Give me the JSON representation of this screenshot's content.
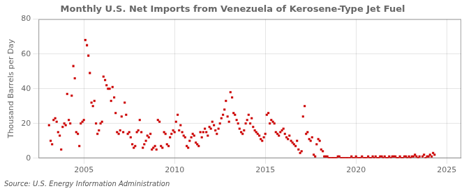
{
  "chart_data": {
    "type": "scatter",
    "title": "Monthly U.S. Net Imports from Venezuela of Kerosene-Type Jet Fuel",
    "ylabel": "Thousand Barrels per Day",
    "annotation": "Source: U.S. Energy Information Administration",
    "color": "#cc0000",
    "marker": "square",
    "grid": true,
    "xlim": [
      2002.5,
      2025.8
    ],
    "xticks": [
      2005,
      2010,
      2015,
      2020,
      2025
    ],
    "ylim": [
      0,
      80
    ],
    "yticks": [
      0,
      20,
      40,
      60,
      80
    ],
    "x": [
      2003.08,
      2003.17,
      2003.25,
      2003.33,
      2003.42,
      2003.5,
      2003.58,
      2003.67,
      2003.75,
      2003.83,
      2003.92,
      2004.0,
      2004.08,
      2004.17,
      2004.25,
      2004.33,
      2004.42,
      2004.5,
      2004.58,
      2004.67,
      2004.75,
      2004.83,
      2004.92,
      2005.0,
      2005.08,
      2005.17,
      2005.25,
      2005.33,
      2005.42,
      2005.5,
      2005.58,
      2005.67,
      2005.75,
      2005.83,
      2005.92,
      2006.0,
      2006.08,
      2006.17,
      2006.25,
      2006.33,
      2006.42,
      2006.5,
      2006.58,
      2006.67,
      2006.75,
      2006.83,
      2006.92,
      2007.0,
      2007.08,
      2007.17,
      2007.25,
      2007.33,
      2007.42,
      2007.5,
      2007.58,
      2007.67,
      2007.75,
      2007.83,
      2007.92,
      2008.0,
      2008.08,
      2008.17,
      2008.25,
      2008.33,
      2008.42,
      2008.5,
      2008.58,
      2008.67,
      2008.75,
      2008.83,
      2008.92,
      2009.0,
      2009.08,
      2009.17,
      2009.25,
      2009.33,
      2009.42,
      2009.5,
      2009.58,
      2009.67,
      2009.75,
      2009.83,
      2009.92,
      2010.0,
      2010.08,
      2010.17,
      2010.25,
      2010.33,
      2010.42,
      2010.5,
      2010.58,
      2010.67,
      2010.75,
      2010.83,
      2010.92,
      2011.0,
      2011.08,
      2011.17,
      2011.25,
      2011.33,
      2011.42,
      2011.5,
      2011.58,
      2011.67,
      2011.75,
      2011.83,
      2011.92,
      2012.0,
      2012.08,
      2012.17,
      2012.25,
      2012.33,
      2012.42,
      2012.5,
      2012.58,
      2012.67,
      2012.75,
      2012.83,
      2012.92,
      2013.0,
      2013.08,
      2013.17,
      2013.25,
      2013.33,
      2013.42,
      2013.5,
      2013.58,
      2013.67,
      2013.75,
      2013.83,
      2013.92,
      2014.0,
      2014.08,
      2014.17,
      2014.25,
      2014.33,
      2014.42,
      2014.5,
      2014.58,
      2014.67,
      2014.75,
      2014.83,
      2014.92,
      2015.0,
      2015.08,
      2015.17,
      2015.25,
      2015.33,
      2015.42,
      2015.5,
      2015.58,
      2015.67,
      2015.75,
      2015.83,
      2015.92,
      2016.0,
      2016.08,
      2016.17,
      2016.25,
      2016.33,
      2016.42,
      2016.5,
      2016.58,
      2016.67,
      2016.75,
      2016.83,
      2016.92,
      2017.0,
      2017.08,
      2017.17,
      2017.25,
      2017.33,
      2017.42,
      2017.5,
      2017.58,
      2017.67,
      2017.75,
      2017.83,
      2017.92,
      2018.0,
      2018.08,
      2018.17,
      2018.25,
      2018.33,
      2018.42,
      2018.5,
      2018.58,
      2018.67,
      2018.75,
      2018.83,
      2018.92,
      2019.0,
      2019.08,
      2019.17,
      2019.25,
      2019.33,
      2019.42,
      2019.5,
      2019.58,
      2019.67,
      2019.75,
      2019.83,
      2019.92,
      2020.0,
      2020.08,
      2020.17,
      2020.25,
      2020.33,
      2020.42,
      2020.5,
      2020.58,
      2020.67,
      2020.75,
      2020.83,
      2020.92,
      2021.0,
      2021.08,
      2021.17,
      2021.25,
      2021.33,
      2021.42,
      2021.5,
      2021.58,
      2021.67,
      2021.75,
      2021.83,
      2021.92,
      2022.0,
      2022.08,
      2022.17,
      2022.25,
      2022.33,
      2022.42,
      2022.5,
      2022.58,
      2022.67,
      2022.75,
      2022.83,
      2022.92,
      2023.0,
      2023.08,
      2023.17,
      2023.25,
      2023.33,
      2023.42,
      2023.5,
      2023.67,
      2023.75,
      2023.83,
      2023.92,
      2024.0,
      2024.08,
      2024.17,
      2024.25,
      2024.33
    ],
    "values": [
      19,
      10,
      8,
      22,
      23,
      21,
      15,
      13,
      5,
      18,
      20,
      19,
      37,
      22,
      20,
      36,
      53,
      46,
      15,
      14,
      7,
      20,
      21,
      22,
      68,
      65,
      59,
      49,
      32,
      30,
      33,
      20,
      14,
      16,
      20,
      21,
      47,
      45,
      42,
      40,
      40,
      33,
      41,
      35,
      26,
      15,
      14,
      16,
      24,
      15,
      32,
      25,
      14,
      15,
      12,
      8,
      6,
      7,
      15,
      16,
      22,
      15,
      6,
      8,
      10,
      13,
      12,
      14,
      5,
      6,
      7,
      5,
      22,
      21,
      7,
      6,
      15,
      14,
      8,
      7,
      12,
      14,
      16,
      15,
      21,
      25,
      16,
      19,
      15,
      13,
      12,
      7,
      6,
      10,
      12,
      14,
      13,
      9,
      8,
      7,
      15,
      12,
      15,
      17,
      15,
      13,
      18,
      17,
      21,
      19,
      16,
      14,
      17,
      20,
      23,
      25,
      28,
      33,
      24,
      21,
      38,
      35,
      26,
      25,
      22,
      20,
      17,
      15,
      14,
      16,
      20,
      22,
      25,
      20,
      23,
      18,
      16,
      15,
      14,
      13,
      11,
      10,
      12,
      14,
      25,
      26,
      20,
      22,
      21,
      20,
      15,
      14,
      13,
      15,
      16,
      17,
      14,
      12,
      11,
      13,
      10,
      9,
      8,
      7,
      10,
      5,
      3,
      4,
      24,
      30,
      14,
      15,
      11,
      10,
      12,
      2,
      1,
      8,
      11,
      10,
      5,
      4,
      1,
      1,
      1,
      0,
      0,
      0,
      0,
      0,
      0,
      1,
      1,
      0,
      0,
      0,
      0,
      0,
      0,
      0,
      1,
      0,
      0,
      1,
      0,
      0,
      0,
      1,
      0,
      0,
      0,
      1,
      0,
      0,
      1,
      0,
      1,
      0,
      0,
      1,
      1,
      0,
      1,
      0,
      0,
      1,
      0,
      1,
      1,
      1,
      0,
      0,
      1,
      0,
      0,
      1,
      1,
      0,
      1,
      0,
      1,
      1,
      2,
      1,
      0,
      1,
      1,
      2,
      0,
      1,
      1,
      2,
      1,
      3,
      2
    ]
  }
}
